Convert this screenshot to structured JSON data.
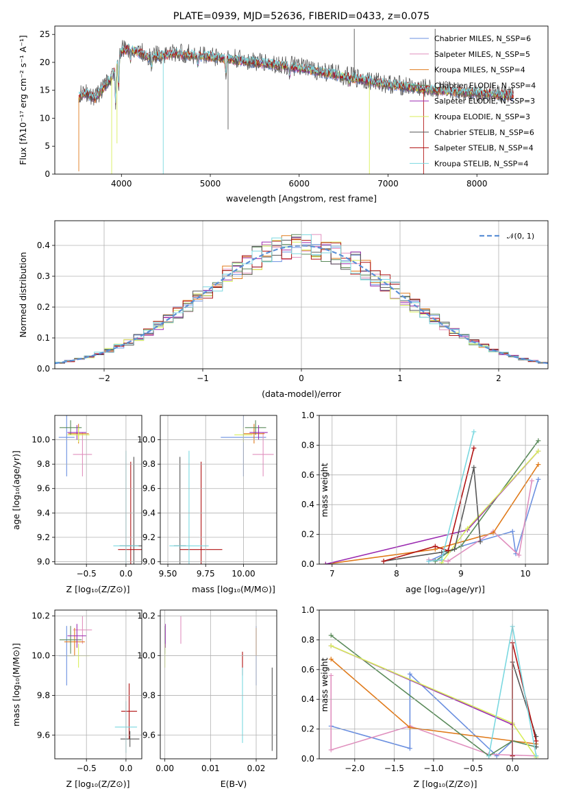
{
  "chart_data": [
    {
      "type": "line",
      "title": "PLATE=0939, MJD=52636, FIBERID=0433, z=0.075",
      "xlabel": "wavelength [Angstrom, rest frame]",
      "ylabel": "Flux [fλ10⁻¹⁷ erg cm⁻² s⁻¹ A⁻¹]",
      "xlim": [
        3250,
        8800
      ],
      "ylim": [
        0,
        26.5
      ],
      "xticks": [
        "4000",
        "5000",
        "6000",
        "7000",
        "8000"
      ],
      "yticks": [
        "0",
        "5",
        "10",
        "15",
        "20",
        "25"
      ],
      "legend_position": "upper right",
      "spectrum_continuum": {
        "x": [
          3500,
          3600,
          3700,
          3800,
          3900,
          4000,
          4100,
          4300,
          4600,
          5000,
          5500,
          6000,
          6500,
          7000,
          7500,
          8000,
          8400
        ],
        "y": [
          13.5,
          14.5,
          13.5,
          15.5,
          17.5,
          22.0,
          22.5,
          21.0,
          21.5,
          21.0,
          20.0,
          19.0,
          17.5,
          16.0,
          15.0,
          14.5,
          14.0
        ]
      },
      "series": [
        {
          "name": "Chabrier MILES, N_SSP=6",
          "color": "#6a8fe0"
        },
        {
          "name": "Salpeter MILES, N_SSP=5",
          "color": "#e08fbe"
        },
        {
          "name": "Kroupa MILES, N_SSP=4",
          "color": "#e07a1a"
        },
        {
          "name": "Chabrier ELODIE, N_SSP=4",
          "color": "#5a8a5a"
        },
        {
          "name": "Salpeter ELODIE, N_SSP=3",
          "color": "#9a2ab0"
        },
        {
          "name": "Kroupa ELODIE, N_SSP=3",
          "color": "#d8ee5a"
        },
        {
          "name": "Chabrier STELIB, N_SSP=6",
          "color": "#555555"
        },
        {
          "name": "Salpeter STELIB, N_SSP=4",
          "color": "#b01010"
        },
        {
          "name": "Kroupa STELIB, N_SSP=4",
          "color": "#7ad8e0"
        }
      ]
    },
    {
      "type": "line",
      "title": "",
      "xlabel": "(data-model)/error",
      "ylabel": "Normed distribution",
      "xlim": [
        -2.5,
        2.5
      ],
      "ylim": [
        0,
        0.48
      ],
      "xticks": [
        "−2",
        "−1",
        "0",
        "1",
        "2"
      ],
      "yticks": [
        "0.0",
        "0.1",
        "0.2",
        "0.3",
        "0.4"
      ],
      "legend": "𝒩(0, 1)",
      "grid": true,
      "reference_curve": "N(0,1)",
      "bin_width": 0.1,
      "colors": [
        "#6a8fe0",
        "#e08fbe",
        "#e07a1a",
        "#5a8a5a",
        "#9a2ab0",
        "#d8ee5a",
        "#555555",
        "#b01010",
        "#7ad8e0"
      ]
    },
    {
      "type": "scatter",
      "xlabel": "Z [log₁₀(Z/Z⊙)]",
      "ylabel": "age  [log₁₀(age/yr)]",
      "xlim": [
        -0.9,
        0.2
      ],
      "ylim": [
        8.98,
        10.2
      ],
      "xticks": [
        "−0.5",
        "0.0"
      ],
      "yticks": [
        "9.0",
        "9.2",
        "9.4",
        "9.6",
        "9.8",
        "10.0"
      ],
      "grid": true,
      "points": [
        {
          "color": "#6a8fe0",
          "x": -0.75,
          "xerr": 0.1,
          "y": 10.02,
          "yerr": 0.32
        },
        {
          "color": "#e08fbe",
          "x": -0.55,
          "xerr": 0.12,
          "y": 9.88,
          "yerr": 0.18
        },
        {
          "color": "#e07a1a",
          "x": -0.6,
          "xerr": 0.13,
          "y": 10.05,
          "yerr": 0.08
        },
        {
          "color": "#5a8a5a",
          "x": -0.7,
          "xerr": 0.14,
          "y": 10.1,
          "yerr": 0.06
        },
        {
          "color": "#9a2ab0",
          "x": -0.62,
          "xerr": 0.12,
          "y": 10.06,
          "yerr": 0.06
        },
        {
          "color": "#d8ee5a",
          "x": -0.6,
          "xerr": 0.14,
          "y": 10.04,
          "yerr": 0.06
        },
        {
          "color": "#555555",
          "x": 0.1,
          "xerr": 0.18,
          "y": 9.13,
          "yerr": 0.73
        },
        {
          "color": "#b01010",
          "x": 0.06,
          "xerr": 0.16,
          "y": 9.1,
          "yerr": 0.72
        },
        {
          "color": "#7ad8e0",
          "x": 0.0,
          "xerr": 0.16,
          "y": 9.13,
          "yerr": 0.78
        }
      ]
    },
    {
      "type": "scatter",
      "xlabel": "mass [log₁₀(M/M⊙)]",
      "ylabel": "",
      "xlim": [
        9.45,
        10.22
      ],
      "ylim": [
        8.98,
        10.2
      ],
      "xticks": [
        "9.50",
        "9.75",
        "10.00"
      ],
      "yticks": [
        "9.0",
        "9.2",
        "9.4",
        "9.6",
        "9.8",
        "10.0"
      ],
      "grid": true,
      "points": [
        {
          "color": "#6a8fe0",
          "x": 10.0,
          "xerr": 0.15,
          "y": 10.02,
          "yerr": 0.32
        },
        {
          "color": "#e08fbe",
          "x": 10.13,
          "xerr": 0.07,
          "y": 9.88,
          "yerr": 0.18
        },
        {
          "color": "#e07a1a",
          "x": 10.07,
          "xerr": 0.07,
          "y": 10.05,
          "yerr": 0.08
        },
        {
          "color": "#5a8a5a",
          "x": 10.08,
          "xerr": 0.07,
          "y": 10.1,
          "yerr": 0.06
        },
        {
          "color": "#9a2ab0",
          "x": 10.1,
          "xerr": 0.06,
          "y": 10.06,
          "yerr": 0.06
        },
        {
          "color": "#d8ee5a",
          "x": 10.0,
          "xerr": 0.06,
          "y": 10.04,
          "yerr": 0.06
        },
        {
          "color": "#555555",
          "x": 9.58,
          "xerr": 0.04,
          "y": 9.13,
          "yerr": 0.73
        },
        {
          "color": "#b01010",
          "x": 9.72,
          "xerr": 0.14,
          "y": 9.1,
          "yerr": 0.72
        },
        {
          "color": "#7ad8e0",
          "x": 9.64,
          "xerr": 0.13,
          "y": 9.13,
          "yerr": 0.78
        }
      ]
    },
    {
      "type": "line",
      "xlabel": "age  [log₁₀(age/yr)]",
      "ylabel": "mass weight",
      "xlim": [
        6.8,
        10.35
      ],
      "ylim": [
        0,
        1.0
      ],
      "xticks": [
        "7",
        "8",
        "9",
        "10"
      ],
      "yticks": [
        "0.0",
        "0.2",
        "0.4",
        "0.6",
        "0.8",
        "1.0"
      ],
      "grid": true,
      "series": [
        {
          "color": "#6a8fe0",
          "x": [
            8.5,
            9.0,
            9.8,
            9.85,
            10.2
          ],
          "y": [
            0.02,
            0.12,
            0.22,
            0.07,
            0.57
          ]
        },
        {
          "color": "#e08fbe",
          "x": [
            8.5,
            8.8,
            9.5,
            9.9,
            10.1
          ],
          "y": [
            0.03,
            0.02,
            0.22,
            0.06,
            0.56
          ]
        },
        {
          "color": "#e07a1a",
          "x": [
            6.9,
            8.6,
            9.5,
            10.2
          ],
          "y": [
            0.0,
            0.1,
            0.21,
            0.67
          ]
        },
        {
          "color": "#5a8a5a",
          "x": [
            8.6,
            8.8,
            9.0,
            10.2
          ],
          "y": [
            0.02,
            0.08,
            0.12,
            0.83
          ]
        },
        {
          "color": "#9a2ab0",
          "x": [
            6.9,
            9.1,
            10.2
          ],
          "y": [
            0.0,
            0.23,
            0.76
          ]
        },
        {
          "color": "#d8ee5a",
          "x": [
            8.7,
            9.1,
            10.2
          ],
          "y": [
            0.01,
            0.24,
            0.76
          ]
        },
        {
          "color": "#555555",
          "x": [
            7.8,
            8.7,
            8.9,
            9.2,
            9.3
          ],
          "y": [
            0.02,
            0.08,
            0.1,
            0.65,
            0.15
          ]
        },
        {
          "color": "#b01010",
          "x": [
            7.8,
            8.6,
            8.8,
            9.2
          ],
          "y": [
            0.02,
            0.12,
            0.09,
            0.78
          ]
        },
        {
          "color": "#7ad8e0",
          "x": [
            8.5,
            8.7,
            9.2
          ],
          "y": [
            0.02,
            0.03,
            0.89
          ]
        }
      ]
    },
    {
      "type": "scatter",
      "xlabel": "Z [log₁₀(Z/Z⊙)]",
      "ylabel": "mass [log₁₀(M/M⊙)]",
      "xlim": [
        -0.9,
        0.2
      ],
      "ylim": [
        9.48,
        10.23
      ],
      "xticks": [
        "−0.5",
        "0.0"
      ],
      "yticks": [
        "9.6",
        "9.8",
        "10.0",
        "10.2"
      ],
      "grid": true,
      "points": [
        {
          "color": "#6a8fe0",
          "x": -0.75,
          "xerr": 0.1,
          "y": 10.0,
          "yerr": 0.15
        },
        {
          "color": "#e08fbe",
          "x": -0.55,
          "xerr": 0.12,
          "y": 10.13,
          "yerr": 0.07
        },
        {
          "color": "#e07a1a",
          "x": -0.65,
          "xerr": 0.13,
          "y": 10.07,
          "yerr": 0.07
        },
        {
          "color": "#5a8a5a",
          "x": -0.7,
          "xerr": 0.14,
          "y": 10.08,
          "yerr": 0.07
        },
        {
          "color": "#9a2ab0",
          "x": -0.62,
          "xerr": 0.12,
          "y": 10.1,
          "yerr": 0.06
        },
        {
          "color": "#d8ee5a",
          "x": -0.6,
          "xerr": 0.14,
          "y": 10.0,
          "yerr": 0.06
        },
        {
          "color": "#555555",
          "x": 0.05,
          "xerr": 0.12,
          "y": 9.58,
          "yerr": 0.04
        },
        {
          "color": "#b01010",
          "x": 0.04,
          "xerr": 0.1,
          "y": 9.72,
          "yerr": 0.14
        },
        {
          "color": "#7ad8e0",
          "x": 0.0,
          "xerr": 0.14,
          "y": 9.64,
          "yerr": 0.13
        }
      ]
    },
    {
      "type": "scatter",
      "xlabel": "E(B-V)",
      "ylabel": "",
      "xlim": [
        -0.001,
        0.0245
      ],
      "ylim": [
        9.48,
        10.23
      ],
      "xticks": [
        "0.00",
        "0.01",
        "0.02"
      ],
      "yticks": [
        "9.6",
        "9.8",
        "10.0",
        "10.2"
      ],
      "grid": true,
      "points": [
        {
          "color": "#6a8fe0",
          "x": 0.02,
          "y": 10.0,
          "yerr": 0.15
        },
        {
          "color": "#e08fbe",
          "x": 0.0035,
          "y": 10.13,
          "yerr": 0.07
        },
        {
          "color": "#e07a1a",
          "x": 0.02,
          "y": 10.07,
          "yerr": 0.07
        },
        {
          "color": "#5a8a5a",
          "x": 0.0,
          "y": 10.08,
          "yerr": 0.07
        },
        {
          "color": "#9a2ab0",
          "x": 0.0001,
          "y": 10.1,
          "yerr": 0.06
        },
        {
          "color": "#d8ee5a",
          "x": 0.0,
          "y": 10.0,
          "yerr": 0.06
        },
        {
          "color": "#555555",
          "x": 0.0235,
          "y": 9.73,
          "yerr": 0.21
        },
        {
          "color": "#b01010",
          "x": 0.017,
          "y": 9.96,
          "yerr": 0.06
        },
        {
          "color": "#7ad8e0",
          "x": 0.017,
          "y": 9.75,
          "yerr": 0.19
        }
      ]
    },
    {
      "type": "line",
      "xlabel": "Z [log₁₀(Z/Z⊙)]",
      "ylabel": "mass weight",
      "xlim": [
        -2.45,
        0.45
      ],
      "ylim": [
        0,
        1.0
      ],
      "xticks": [
        "−2.0",
        "−1.5",
        "−1.0",
        "−0.5",
        "0.0"
      ],
      "yticks": [
        "0.0",
        "0.2",
        "0.4",
        "0.6",
        "0.8",
        "1.0"
      ],
      "grid": true,
      "series": [
        {
          "color": "#6a8fe0",
          "x": [
            -2.3,
            -1.3,
            -1.3,
            -0.2,
            0.0
          ],
          "y": [
            0.22,
            0.07,
            0.57,
            0.02,
            0.12
          ]
        },
        {
          "color": "#e08fbe",
          "x": [
            -2.3,
            -2.3,
            -1.3,
            -0.3,
            0.3
          ],
          "y": [
            0.56,
            0.06,
            0.22,
            0.03,
            0.02
          ]
        },
        {
          "color": "#e07a1a",
          "x": [
            -2.3,
            -1.3,
            0.3
          ],
          "y": [
            0.67,
            0.21,
            0.1
          ]
        },
        {
          "color": "#5a8a5a",
          "x": [
            -2.3,
            -0.3,
            0.0,
            0.3
          ],
          "y": [
            0.83,
            0.02,
            0.12,
            0.08
          ]
        },
        {
          "color": "#9a2ab0",
          "x": [
            -2.3,
            0.0,
            0.0
          ],
          "y": [
            0.76,
            0.23,
            0.0
          ]
        },
        {
          "color": "#d8ee5a",
          "x": [
            -2.3,
            0.0,
            0.3
          ],
          "y": [
            0.76,
            0.24,
            0.01
          ]
        },
        {
          "color": "#555555",
          "x": [
            0.0,
            0.0,
            0.3,
            0.3
          ],
          "y": [
            0.02,
            0.65,
            0.15,
            0.08
          ]
        },
        {
          "color": "#b01010",
          "x": [
            0.0,
            0.0,
            0.3
          ],
          "y": [
            0.02,
            0.78,
            0.12
          ]
        },
        {
          "color": "#7ad8e0",
          "x": [
            -0.3,
            0.0,
            0.3
          ],
          "y": [
            0.02,
            0.89,
            0.02
          ]
        }
      ]
    }
  ]
}
